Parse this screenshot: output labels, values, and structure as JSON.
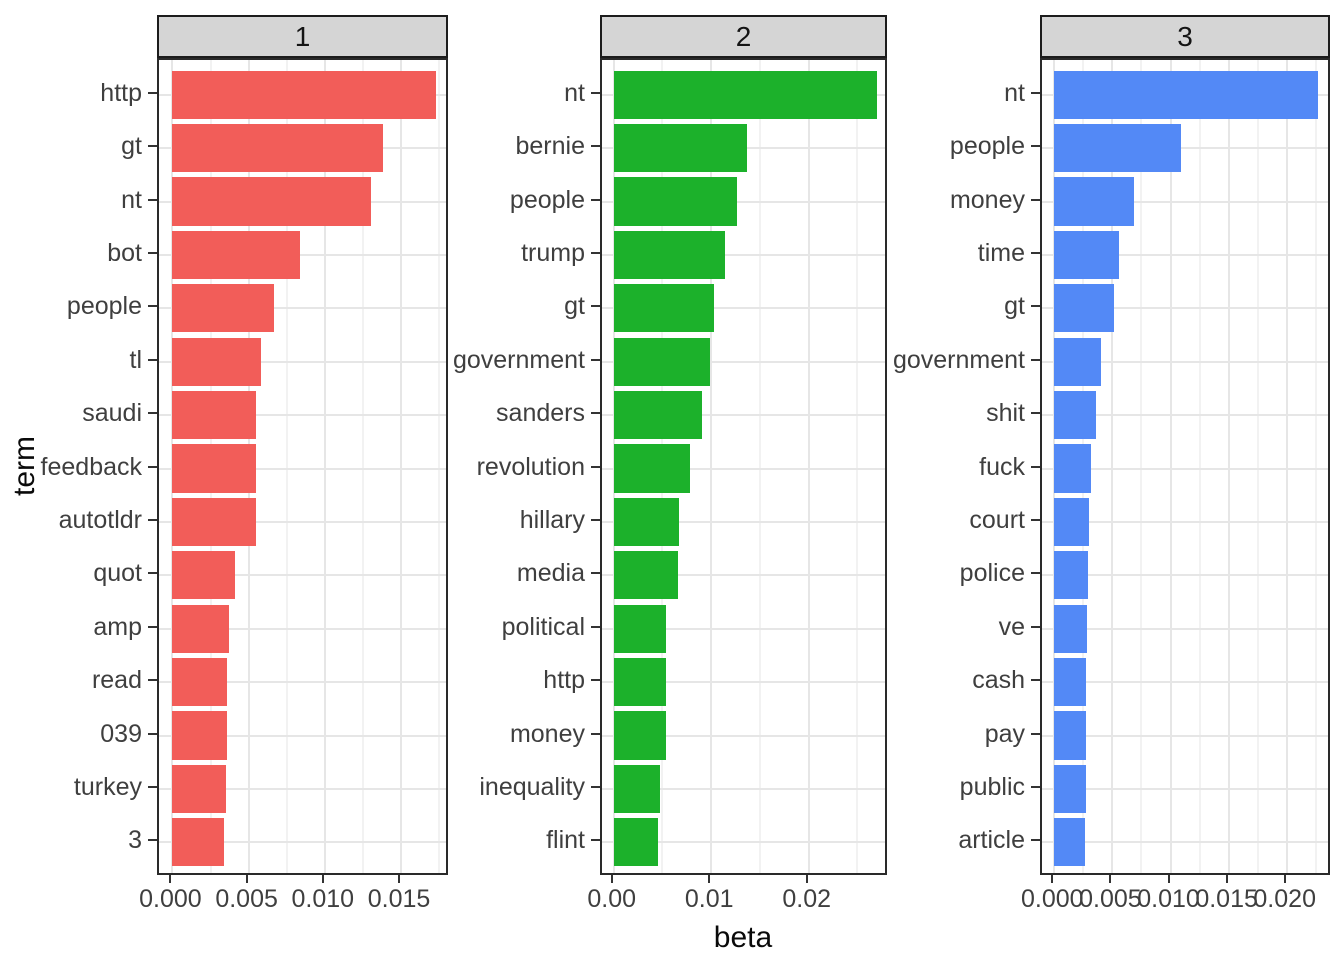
{
  "figure": {
    "x_axis_title": "beta",
    "y_axis_title": "term",
    "background_color": "#FFFFFF",
    "panel_bg_color": "#FFFFFF",
    "panel_border_color": "#2A2A2A",
    "grid_major_color": "#E6E6E6",
    "grid_minor_color": "#F2F2F2",
    "strip_bg_color": "#D5D5D5",
    "axis_text_color": "#3F3F3F",
    "legend": "none"
  },
  "chart_data": [
    {
      "type": "bar",
      "orientation": "horizontal",
      "facet_label": "1",
      "fill": "#F25D59",
      "xlabel": "beta",
      "ylabel": "term",
      "categories": [
        "http",
        "gt",
        "nt",
        "bot",
        "people",
        "tl",
        "saudi",
        "feedback",
        "autotldr",
        "quot",
        "amp",
        "read",
        "039",
        "turkey",
        "3"
      ],
      "values": [
        0.0173,
        0.0138,
        0.013,
        0.0084,
        0.0067,
        0.0058,
        0.0055,
        0.0055,
        0.0055,
        0.0041,
        0.0037,
        0.0036,
        0.0036,
        0.0035,
        0.0034
      ],
      "x_ticks": [
        0,
        0.005,
        0.01,
        0.015
      ],
      "x_tick_labels": [
        "0.000",
        "0.005",
        "0.010",
        "0.015"
      ],
      "xlim": [
        0,
        0.0182
      ],
      "grid": true
    },
    {
      "type": "bar",
      "orientation": "horizontal",
      "facet_label": "2",
      "fill": "#1CB12B",
      "xlabel": "beta",
      "ylabel": "term",
      "categories": [
        "nt",
        "bernie",
        "people",
        "trump",
        "gt",
        "government",
        "sanders",
        "revolution",
        "hillary",
        "media",
        "political",
        "http",
        "money",
        "inequality",
        "flint"
      ],
      "values": [
        0.027,
        0.0137,
        0.0126,
        0.0114,
        0.0103,
        0.0099,
        0.0091,
        0.0078,
        0.0067,
        0.0066,
        0.0054,
        0.0054,
        0.0054,
        0.0047,
        0.0045
      ],
      "x_ticks": [
        0,
        0.01,
        0.02
      ],
      "x_tick_labels": [
        "0.00",
        "0.01",
        "0.02"
      ],
      "xlim": [
        0,
        0.0283
      ],
      "grid": true
    },
    {
      "type": "bar",
      "orientation": "horizontal",
      "facet_label": "3",
      "fill": "#5389F6",
      "xlabel": "beta",
      "ylabel": "term",
      "categories": [
        "nt",
        "people",
        "money",
        "time",
        "gt",
        "government",
        "shit",
        "fuck",
        "court",
        "police",
        "ve",
        "cash",
        "pay",
        "public",
        "article"
      ],
      "values": [
        0.0227,
        0.0109,
        0.0069,
        0.0056,
        0.0051,
        0.004,
        0.0036,
        0.0032,
        0.003,
        0.0029,
        0.0028,
        0.0027,
        0.0027,
        0.0027,
        0.0026
      ],
      "x_ticks": [
        0,
        0.005,
        0.01,
        0.015,
        0.02
      ],
      "x_tick_labels": [
        "0.000",
        "0.005",
        "0.010",
        "0.015",
        "0.020"
      ],
      "xlim": [
        0,
        0.0239
      ],
      "grid": true
    }
  ]
}
